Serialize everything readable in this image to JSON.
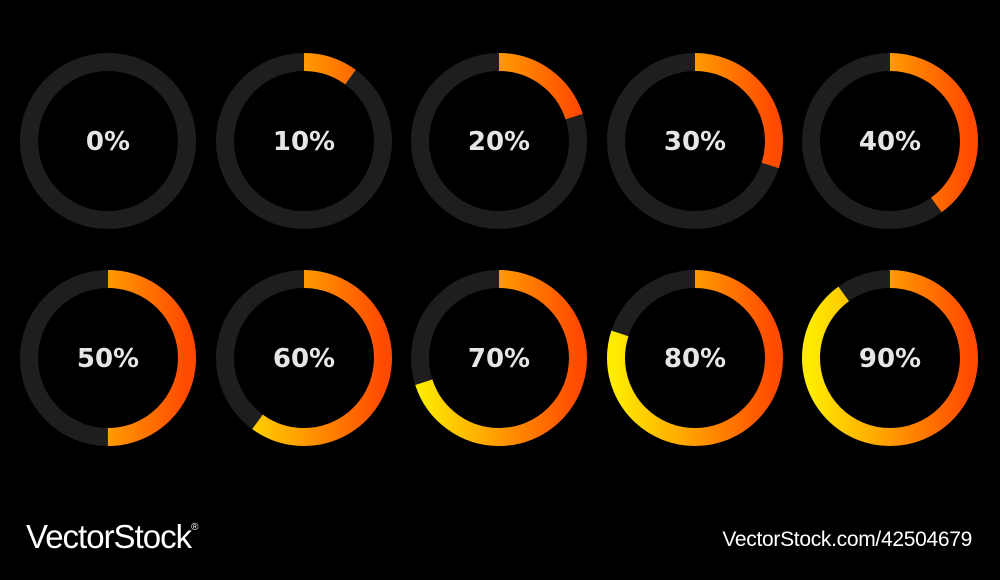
{
  "colors": {
    "background": "#000000",
    "track": "#1e1e1e",
    "gradient_start": "#ffec00",
    "gradient_end": "#ff4a00",
    "label": "#e6e6e6"
  },
  "progress_rings": [
    {
      "label": "0%",
      "value": 0
    },
    {
      "label": "10%",
      "value": 10
    },
    {
      "label": "20%",
      "value": 20
    },
    {
      "label": "30%",
      "value": 30
    },
    {
      "label": "40%",
      "value": 40
    },
    {
      "label": "50%",
      "value": 50
    },
    {
      "label": "60%",
      "value": 60
    },
    {
      "label": "70%",
      "value": 70
    },
    {
      "label": "80%",
      "value": 80
    },
    {
      "label": "90%",
      "value": 90
    }
  ],
  "footer": {
    "brand": "VectorStock",
    "reg_mark": "®",
    "url": "VectorStock.com/42504679"
  }
}
